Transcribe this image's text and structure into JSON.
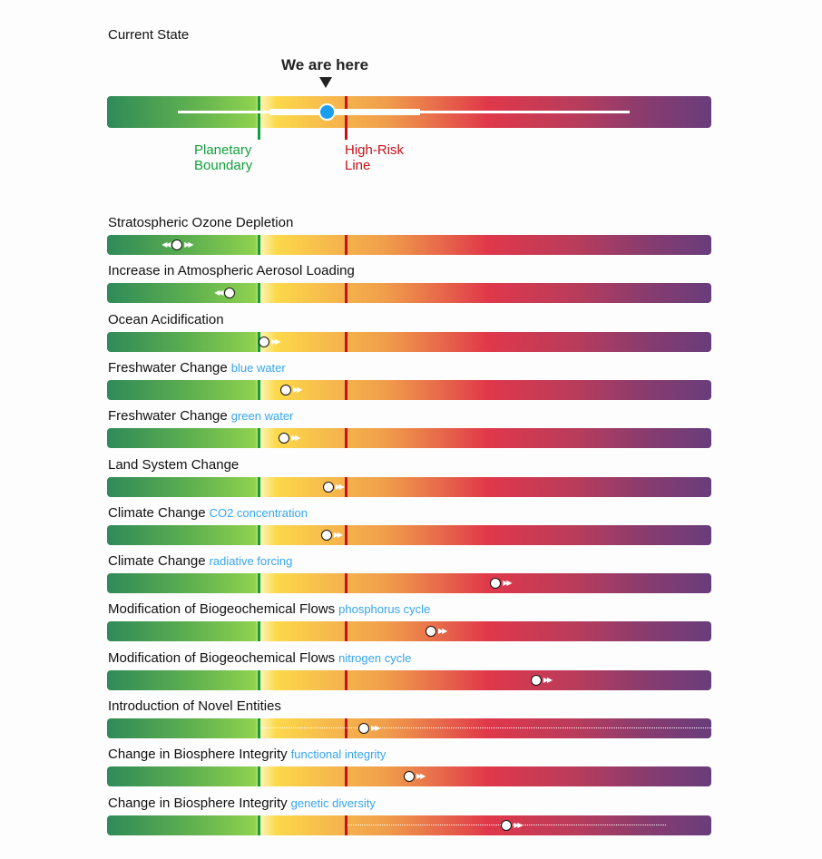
{
  "title": "Current State",
  "indicator_label": "We are here",
  "legend": {
    "boundary": [
      "Planetary",
      "Boundary"
    ],
    "high_risk": [
      "High-Risk",
      "Line"
    ]
  },
  "colors": {
    "boundary": "#12a03c",
    "high_risk": "#c8101a",
    "marker": "#1a9ef0",
    "sub": "#35a6ee"
  },
  "current_state": {
    "position": 0.363,
    "range": [
      0.117,
      0.865
    ],
    "core_range": [
      0.269,
      0.518
    ]
  },
  "scale": {
    "boundary": 0.25,
    "high_risk": 0.395
  },
  "rows": [
    {
      "label": "Stratospheric Ozone Depletion",
      "sub": "",
      "value": 0.116,
      "trend": "both"
    },
    {
      "label": "Increase in Atmospheric Aerosol Loading",
      "sub": "",
      "value": 0.203,
      "trend": "left"
    },
    {
      "label": "Ocean Acidification",
      "sub": "",
      "value": 0.26,
      "trend": "right"
    },
    {
      "label": "Freshwater Change",
      "sub": "blue water",
      "value": 0.296,
      "trend": "right"
    },
    {
      "label": "Freshwater Change",
      "sub": "green water",
      "value": 0.293,
      "trend": "right"
    },
    {
      "label": "Land System Change",
      "sub": "",
      "value": 0.366,
      "trend": "right"
    },
    {
      "label": "Climate Change",
      "sub": "CO2 concentration",
      "value": 0.363,
      "trend": "right"
    },
    {
      "label": "Climate Change",
      "sub": "radiative forcing",
      "value": 0.643,
      "trend": "right"
    },
    {
      "label": "Modification of Biogeochemical Flows",
      "sub": "phosphorus cycle",
      "value": 0.536,
      "trend": "right"
    },
    {
      "label": "Modification of Biogeochemical Flows",
      "sub": "nitrogen cycle",
      "value": 0.71,
      "trend": "right"
    },
    {
      "label": "Introduction of Novel Entities",
      "sub": "",
      "value": 0.425,
      "trend": "right",
      "uncertainty": [
        0.25,
        1.0
      ]
    },
    {
      "label": "Change in Biosphere Integrity",
      "sub": "functional integrity",
      "value": 0.5,
      "trend": "right"
    },
    {
      "label": "Change in Biosphere Integrity",
      "sub": "genetic diversity",
      "value": 0.661,
      "trend": "right",
      "uncertainty": [
        0.395,
        0.925
      ]
    }
  ]
}
